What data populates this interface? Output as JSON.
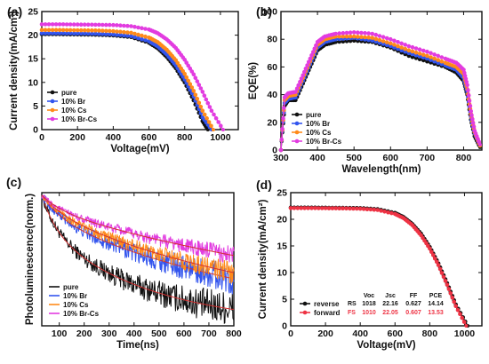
{
  "colors": {
    "pure": "#111111",
    "br": "#3355ee",
    "cs": "#ff8a1a",
    "brcs": "#e23ce0",
    "fit": "#d32f2f",
    "fs": "#ee3344"
  },
  "chart_data": [
    {
      "id": "a",
      "type": "line",
      "panel_label": "(a)",
      "xlabel": "Voltage(mV)",
      "ylabel": "Current density(mA/cm²)",
      "xlim": [
        0,
        1100
      ],
      "ylim": [
        0,
        25
      ],
      "xticks": [
        0,
        200,
        400,
        600,
        800,
        1000
      ],
      "yticks": [
        0,
        5,
        10,
        15,
        20,
        25
      ],
      "legend_position": "bottom-left",
      "series": [
        {
          "name": "pure",
          "color_key": "pure",
          "marker": "circle",
          "x": [
            0,
            100,
            200,
            300,
            400,
            500,
            600,
            650,
            700,
            750,
            800,
            850,
            900,
            930
          ],
          "y": [
            20.2,
            20.2,
            20.15,
            20.1,
            19.95,
            19.6,
            18.4,
            17.2,
            15.4,
            13,
            10,
            6.2,
            1.8,
            0
          ]
        },
        {
          "name": "10% Br",
          "color_key": "br",
          "marker": "circle",
          "x": [
            0,
            100,
            200,
            300,
            400,
            500,
            600,
            650,
            700,
            750,
            800,
            850,
            900,
            950
          ],
          "y": [
            20.4,
            20.4,
            20.35,
            20.3,
            20.15,
            19.8,
            18.7,
            17.6,
            15.9,
            13.6,
            10.6,
            7,
            2.6,
            0
          ]
        },
        {
          "name": "10% Cs",
          "color_key": "cs",
          "marker": "circle",
          "x": [
            0,
            100,
            200,
            300,
            400,
            500,
            600,
            650,
            700,
            750,
            800,
            850,
            900,
            960
          ],
          "y": [
            21.1,
            21.1,
            21.05,
            21,
            20.85,
            20.5,
            19.5,
            18.5,
            16.9,
            14.7,
            11.8,
            8.2,
            4,
            0
          ]
        },
        {
          "name": "10% Br-Cs",
          "color_key": "brcs",
          "marker": "circle",
          "x": [
            0,
            100,
            200,
            300,
            400,
            500,
            600,
            650,
            700,
            750,
            800,
            850,
            900,
            950,
            1015
          ],
          "y": [
            22.3,
            22.3,
            22.25,
            22.2,
            22.15,
            21.9,
            21.2,
            20.4,
            19.1,
            17.3,
            14.8,
            11.7,
            8,
            4,
            0
          ]
        }
      ]
    },
    {
      "id": "b",
      "type": "line",
      "panel_label": "(b)",
      "xlabel": "Wavelength(nm)",
      "ylabel": "EQE(%)",
      "xlim": [
        300,
        850
      ],
      "ylim": [
        0,
        100
      ],
      "xticks": [
        300,
        400,
        500,
        600,
        700,
        800
      ],
      "yticks": [
        0,
        20,
        40,
        60,
        80,
        100
      ],
      "legend_position": "bottom-left",
      "series": [
        {
          "name": "pure",
          "color_key": "pure",
          "marker": "circle",
          "x": [
            300,
            310,
            320,
            340,
            360,
            380,
            400,
            420,
            450,
            500,
            550,
            600,
            650,
            700,
            750,
            780,
            800,
            810,
            820,
            830,
            845
          ],
          "y": [
            0,
            32,
            36,
            36,
            48,
            60,
            72,
            76,
            78,
            79,
            78,
            74,
            68,
            64,
            60,
            56,
            50,
            40,
            22,
            10,
            2
          ]
        },
        {
          "name": "10% Br",
          "color_key": "br",
          "marker": "circle",
          "x": [
            300,
            310,
            320,
            340,
            360,
            380,
            400,
            420,
            450,
            500,
            550,
            600,
            650,
            700,
            750,
            780,
            800,
            810,
            820,
            830,
            845
          ],
          "y": [
            0,
            34,
            37,
            38,
            50,
            62,
            74,
            78,
            80,
            81,
            79,
            75,
            70,
            66,
            61,
            58,
            52,
            42,
            24,
            12,
            3
          ]
        },
        {
          "name": "10% Cs",
          "color_key": "cs",
          "marker": "circle",
          "x": [
            300,
            310,
            320,
            340,
            360,
            380,
            400,
            420,
            450,
            500,
            550,
            600,
            650,
            700,
            750,
            780,
            800,
            810,
            820,
            830,
            845
          ],
          "y": [
            0,
            36,
            39,
            40,
            52,
            64,
            76,
            80,
            82,
            82,
            81,
            77,
            72,
            68,
            63,
            60,
            55,
            44,
            26,
            13,
            3
          ]
        },
        {
          "name": "10% Br-Cs",
          "color_key": "brcs",
          "marker": "circle",
          "x": [
            300,
            310,
            320,
            340,
            360,
            380,
            400,
            420,
            450,
            500,
            550,
            600,
            650,
            700,
            750,
            780,
            800,
            810,
            820,
            830,
            845
          ],
          "y": [
            0,
            38,
            41,
            42,
            54,
            66,
            78,
            82,
            84,
            85,
            84,
            80,
            75,
            71,
            66,
            63,
            58,
            47,
            28,
            14,
            4
          ]
        }
      ]
    },
    {
      "id": "c",
      "type": "line",
      "panel_label": "(c)",
      "xlabel": "Time(ns)",
      "ylabel": "Photoluminescence(norm.)",
      "xlim": [
        30,
        800
      ],
      "ylim": [
        0,
        1
      ],
      "xticks": [
        100,
        200,
        300,
        400,
        500,
        600,
        700,
        800
      ],
      "yticks": [],
      "legend_position": "bottom-left",
      "series": [
        {
          "name": "pure",
          "color_key": "pure",
          "tau": [
            60,
            430
          ],
          "amp": [
            0.25,
            0.75
          ],
          "noise": 0.035
        },
        {
          "name": "10% Br",
          "color_key": "br",
          "tau": [
            80,
            900
          ],
          "amp": [
            0.15,
            0.85
          ],
          "noise": 0.03
        },
        {
          "name": "10% Cs",
          "color_key": "cs",
          "tau": [
            90,
            1000
          ],
          "amp": [
            0.12,
            0.88
          ],
          "noise": 0.022
        },
        {
          "name": "10% Br-Cs",
          "color_key": "brcs",
          "tau": [
            80,
            1500
          ],
          "amp": [
            0.1,
            0.9
          ],
          "noise": 0.018
        }
      ]
    },
    {
      "id": "d",
      "type": "line",
      "panel_label": "(d)",
      "xlabel": "Voltage(mV)",
      "ylabel": "Current density(mA/cm²)",
      "xlim": [
        0,
        1100
      ],
      "ylim": [
        0,
        25
      ],
      "xticks": [
        0,
        200,
        400,
        600,
        800,
        1000
      ],
      "yticks": [
        0,
        5,
        10,
        15,
        20,
        25
      ],
      "legend_position": "bottom-left",
      "series": [
        {
          "name": "reverse",
          "color_key": "pure",
          "marker": "circle",
          "x": [
            0,
            100,
            200,
            300,
            400,
            500,
            600,
            650,
            700,
            750,
            800,
            850,
            900,
            950,
            1018
          ],
          "y": [
            22.2,
            22.2,
            22.18,
            22.15,
            22.1,
            21.9,
            21.2,
            20.4,
            19.1,
            17.3,
            14.8,
            11.7,
            8,
            4,
            0
          ]
        },
        {
          "name": "forward",
          "color_key": "fs",
          "marker": "circle",
          "x": [
            0,
            100,
            200,
            300,
            400,
            500,
            600,
            650,
            700,
            750,
            800,
            850,
            900,
            950,
            1010
          ],
          "y": [
            22.1,
            22.1,
            22.08,
            22.05,
            21.98,
            21.75,
            21,
            20.2,
            18.9,
            17,
            14.5,
            11.4,
            7.7,
            3.7,
            0
          ]
        }
      ],
      "table": {
        "header": [
          "Voc",
          "Jsc",
          "FF",
          "PCE"
        ],
        "rows": [
          {
            "label": "RS",
            "values": [
              "1018",
              "22.16",
              "0.627",
              "14.14"
            ],
            "color_key": "pure"
          },
          {
            "label": "FS",
            "values": [
              "1010",
              "22.05",
              "0.607",
              "13.53"
            ],
            "color_key": "fs"
          }
        ]
      }
    }
  ]
}
